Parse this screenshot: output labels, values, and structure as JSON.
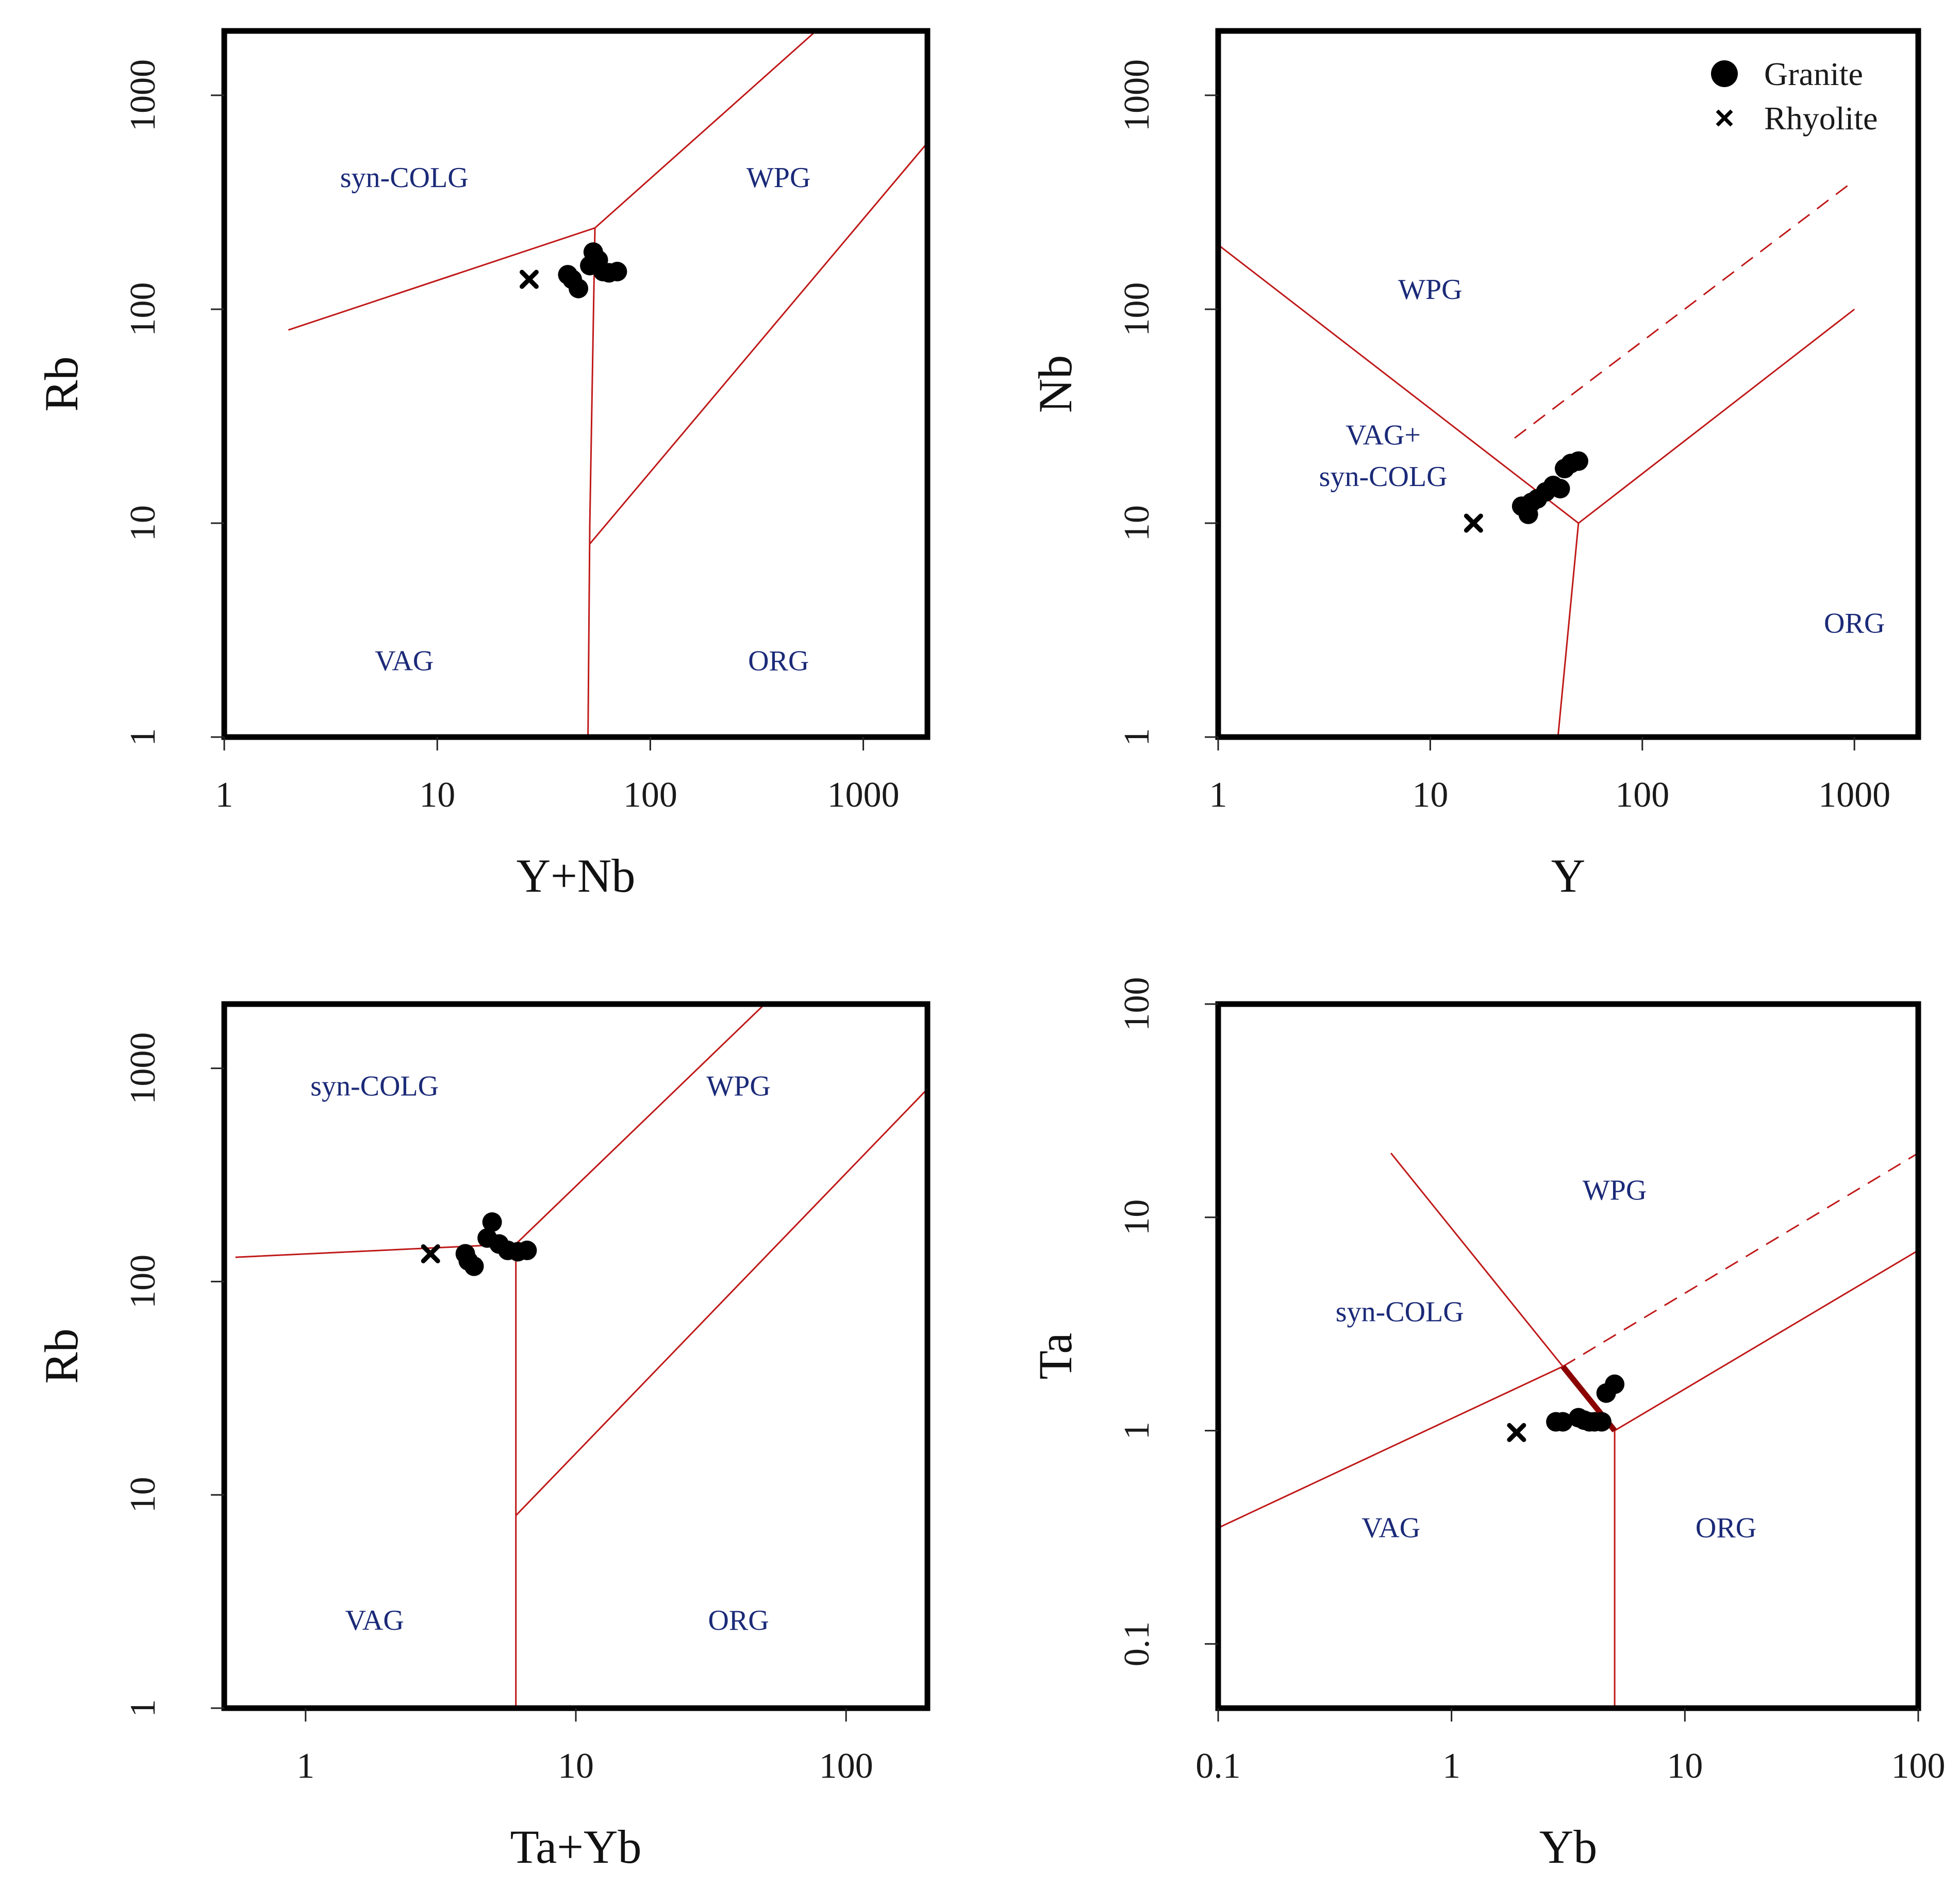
{
  "colors": {
    "boundary": "#c01818",
    "boundary_dark": "#8b0000",
    "region_text": "#1b2a78",
    "marker": "#000000",
    "frame": "#000000"
  },
  "legend": {
    "location": "top-right",
    "entries": [
      {
        "symbol": "filled-circle",
        "label": "Granite"
      },
      {
        "symbol": "x",
        "label": "Rhyolite"
      }
    ]
  },
  "chart_data": [
    {
      "id": "rb-vs-ynb",
      "type": "scatter",
      "xscale": "log",
      "yscale": "log",
      "xlabel": "Y+Nb",
      "ylabel": "Rb",
      "xlim": [
        1,
        2000
      ],
      "ylim": [
        1,
        2000
      ],
      "xticks": [
        {
          "v": 1,
          "label": "1"
        },
        {
          "v": 10,
          "label": "10"
        },
        {
          "v": 100,
          "label": "100"
        },
        {
          "v": 1000,
          "label": "1000"
        }
      ],
      "yticks": [
        {
          "v": 1,
          "label": "1"
        },
        {
          "v": 10,
          "label": "10"
        },
        {
          "v": 100,
          "label": "100"
        },
        {
          "v": 1000,
          "label": "1000"
        }
      ],
      "regions": [
        {
          "label": "syn-COLG",
          "x": 7,
          "y": 400
        },
        {
          "label": "WPG",
          "x": 400,
          "y": 400
        },
        {
          "label": "VAG",
          "x": 7,
          "y": 2.2
        },
        {
          "label": "ORG",
          "x": 400,
          "y": 2.2
        }
      ],
      "boundaries": [
        {
          "style": "solid",
          "points": [
            [
              2,
              80
            ],
            [
              55,
              240
            ],
            [
              600,
              2000
            ]
          ]
        },
        {
          "style": "solid",
          "points": [
            [
              55,
              240
            ],
            [
              52,
              10
            ],
            [
              51,
              1
            ]
          ]
        },
        {
          "style": "solid",
          "points": [
            [
              52,
              8
            ],
            [
              2000,
              600
            ]
          ]
        }
      ],
      "series": [
        {
          "name": "Granite",
          "marker": "filled-circle",
          "points": [
            [
              41,
              145
            ],
            [
              43,
              138
            ],
            [
              46,
              125
            ],
            [
              52,
              160
            ],
            [
              54,
              185
            ],
            [
              57,
              170
            ],
            [
              60,
              150
            ],
            [
              64,
              148
            ],
            [
              70,
              150
            ]
          ]
        },
        {
          "name": "Rhyolite",
          "marker": "x",
          "points": [
            [
              27,
              138
            ]
          ]
        }
      ]
    },
    {
      "id": "nb-vs-y",
      "type": "scatter",
      "xscale": "log",
      "yscale": "log",
      "xlabel": "Y",
      "ylabel": "Nb",
      "xlim": [
        1,
        2000
      ],
      "ylim": [
        1,
        2000
      ],
      "xticks": [
        {
          "v": 1,
          "label": "1"
        },
        {
          "v": 10,
          "label": "10"
        },
        {
          "v": 100,
          "label": "100"
        },
        {
          "v": 1000,
          "label": "1000"
        }
      ],
      "yticks": [
        {
          "v": 1,
          "label": "1"
        },
        {
          "v": 10,
          "label": "10"
        },
        {
          "v": 100,
          "label": "100"
        },
        {
          "v": 1000,
          "label": "1000"
        }
      ],
      "regions": [
        {
          "label": "WPG",
          "x": 10,
          "y": 120
        },
        {
          "label": "VAG+",
          "x": 6,
          "y": 25
        },
        {
          "label": "syn-COLG",
          "x": 6,
          "y": 16
        },
        {
          "label": "ORG",
          "x": 1000,
          "y": 3.3
        }
      ],
      "boundaries": [
        {
          "style": "solid",
          "points": [
            [
              1,
              200
            ],
            [
              50,
              10
            ],
            [
              1000,
              100
            ]
          ]
        },
        {
          "style": "solid",
          "points": [
            [
              50,
              10
            ],
            [
              40,
              1
            ]
          ]
        },
        {
          "style": "dashed",
          "points": [
            [
              25,
              25
            ],
            [
              1000,
              400
            ]
          ]
        }
      ],
      "series": [
        {
          "name": "Granite",
          "marker": "filled-circle",
          "points": [
            [
              27,
              12
            ],
            [
              29,
              11
            ],
            [
              30,
              12.5
            ],
            [
              32,
              13
            ],
            [
              35,
              14
            ],
            [
              38,
              15
            ],
            [
              41,
              14.5
            ],
            [
              43,
              18
            ],
            [
              46,
              19
            ],
            [
              50,
              19.5
            ]
          ]
        },
        {
          "name": "Rhyolite",
          "marker": "x",
          "points": [
            [
              16,
              10
            ]
          ]
        }
      ]
    },
    {
      "id": "rb-vs-tayb",
      "type": "scatter",
      "xscale": "log",
      "yscale": "log",
      "xlabel": "Ta+Yb",
      "ylabel": "Rb",
      "xlim": [
        0.5,
        200
      ],
      "ylim": [
        1,
        2000
      ],
      "xticks": [
        {
          "v": 1,
          "label": "1"
        },
        {
          "v": 10,
          "label": "10"
        },
        {
          "v": 100,
          "label": "100"
        }
      ],
      "yticks": [
        {
          "v": 1,
          "label": "1"
        },
        {
          "v": 10,
          "label": "10"
        },
        {
          "v": 100,
          "label": "100"
        },
        {
          "v": 1000,
          "label": "1000"
        }
      ],
      "regions": [
        {
          "label": "syn-COLG",
          "x": 1.8,
          "y": 800
        },
        {
          "label": "WPG",
          "x": 40,
          "y": 800
        },
        {
          "label": "VAG",
          "x": 1.8,
          "y": 2.5
        },
        {
          "label": "ORG",
          "x": 40,
          "y": 2.5
        }
      ],
      "boundaries": [
        {
          "style": "solid",
          "points": [
            [
              0.55,
              130
            ],
            [
              6,
              150
            ],
            [
              50,
              2000
            ]
          ]
        },
        {
          "style": "solid",
          "points": [
            [
              6,
              150
            ],
            [
              6,
              1
            ]
          ]
        },
        {
          "style": "solid",
          "points": [
            [
              6,
              8
            ],
            [
              200,
              800
            ]
          ]
        }
      ],
      "series": [
        {
          "name": "Granite",
          "marker": "filled-circle",
          "points": [
            [
              3.9,
              135
            ],
            [
              4,
              125
            ],
            [
              4.2,
              118
            ],
            [
              4.7,
              160
            ],
            [
              4.9,
              190
            ],
            [
              5.2,
              150
            ],
            [
              5.6,
              140
            ],
            [
              6.1,
              138
            ],
            [
              6.6,
              140
            ]
          ]
        },
        {
          "name": "Rhyolite",
          "marker": "x",
          "points": [
            [
              2.9,
              135
            ]
          ]
        }
      ]
    },
    {
      "id": "ta-vs-yb",
      "type": "scatter",
      "xscale": "log",
      "yscale": "log",
      "xlabel": "Yb",
      "ylabel": "Ta",
      "xlim": [
        0.1,
        100
      ],
      "ylim": [
        0.05,
        100
      ],
      "xticks": [
        {
          "v": 0.1,
          "label": "0.1"
        },
        {
          "v": 1,
          "label": "1"
        },
        {
          "v": 10,
          "label": "10"
        },
        {
          "v": 100,
          "label": "100"
        }
      ],
      "yticks": [
        {
          "v": 0.1,
          "label": "0.1"
        },
        {
          "v": 1,
          "label": "1"
        },
        {
          "v": 10,
          "label": "10"
        },
        {
          "v": 100,
          "label": "100"
        }
      ],
      "regions": [
        {
          "label": "WPG",
          "x": 5,
          "y": 13
        },
        {
          "label": "syn-COLG",
          "x": 0.6,
          "y": 3.5
        },
        {
          "label": "VAG",
          "x": 0.55,
          "y": 0.34
        },
        {
          "label": "ORG",
          "x": 15,
          "y": 0.34
        }
      ],
      "boundaries": [
        {
          "style": "solid",
          "points": [
            [
              0.1,
              0.35
            ],
            [
              3,
              2
            ],
            [
              5,
              1
            ],
            [
              100,
              7
            ]
          ]
        },
        {
          "style": "solid",
          "points": [
            [
              0.55,
              20
            ],
            [
              3,
              2
            ]
          ]
        },
        {
          "style": "solid",
          "points": [
            [
              5,
              1
            ],
            [
              5,
              0.05
            ]
          ]
        },
        {
          "style": "dashed",
          "points": [
            [
              3,
              2
            ],
            [
              100,
              20
            ]
          ]
        },
        {
          "style": "bold",
          "points": [
            [
              3,
              2
            ],
            [
              5,
              1
            ]
          ]
        }
      ],
      "series": [
        {
          "name": "Granite",
          "marker": "filled-circle",
          "points": [
            [
              2.8,
              1.1
            ],
            [
              3,
              1.1
            ],
            [
              3.5,
              1.15
            ],
            [
              3.7,
              1.12
            ],
            [
              3.9,
              1.1
            ],
            [
              4.1,
              1.1
            ],
            [
              4.4,
              1.1
            ],
            [
              4.6,
              1.5
            ],
            [
              5,
              1.65
            ]
          ]
        },
        {
          "name": "Rhyolite",
          "marker": "x",
          "points": [
            [
              1.9,
              0.98
            ]
          ]
        }
      ]
    }
  ]
}
